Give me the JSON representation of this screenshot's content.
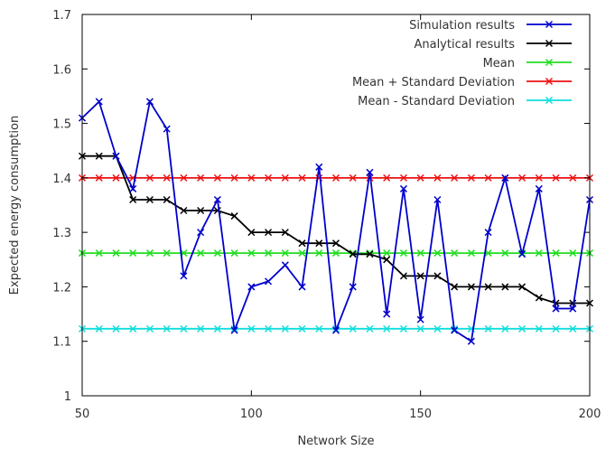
{
  "chart_data": {
    "type": "line",
    "title": "",
    "xlabel": "Network Size",
    "ylabel": "Expected energy consumption",
    "xlim": [
      50,
      200
    ],
    "ylim": [
      1,
      1.7
    ],
    "xticks": [
      50,
      100,
      150,
      200
    ],
    "yticks": [
      1,
      1.1,
      1.2,
      1.3,
      1.4,
      1.5,
      1.6,
      1.7
    ],
    "grid": false,
    "legend_position": "top-right",
    "x": [
      50,
      55,
      60,
      65,
      70,
      75,
      80,
      85,
      90,
      95,
      100,
      105,
      110,
      115,
      120,
      125,
      130,
      135,
      140,
      145,
      150,
      155,
      160,
      165,
      170,
      175,
      180,
      185,
      190,
      195,
      200
    ],
    "series": [
      {
        "name": "Simulation results",
        "color": "#0000cc",
        "values": [
          1.51,
          1.54,
          1.44,
          1.38,
          1.54,
          1.49,
          1.22,
          1.3,
          1.36,
          1.12,
          1.2,
          1.21,
          1.24,
          1.2,
          1.42,
          1.12,
          1.2,
          1.41,
          1.15,
          1.38,
          1.14,
          1.36,
          1.12,
          1.1,
          1.3,
          1.4,
          1.26,
          1.38,
          1.16,
          1.16,
          1.36
        ]
      },
      {
        "name": "Analytical results",
        "color": "#000000",
        "values": [
          1.44,
          1.44,
          1.44,
          1.36,
          1.36,
          1.36,
          1.34,
          1.34,
          1.34,
          1.33,
          1.3,
          1.3,
          1.3,
          1.28,
          1.28,
          1.28,
          1.26,
          1.26,
          1.25,
          1.22,
          1.22,
          1.22,
          1.2,
          1.2,
          1.2,
          1.2,
          1.2,
          1.18,
          1.17,
          1.17,
          1.17
        ]
      },
      {
        "name": "Mean",
        "color": "#22dd22",
        "values": [
          1.262,
          1.262,
          1.262,
          1.262,
          1.262,
          1.262,
          1.262,
          1.262,
          1.262,
          1.262,
          1.262,
          1.262,
          1.262,
          1.262,
          1.262,
          1.262,
          1.262,
          1.262,
          1.262,
          1.262,
          1.262,
          1.262,
          1.262,
          1.262,
          1.262,
          1.262,
          1.262,
          1.262,
          1.262,
          1.262,
          1.262
        ]
      },
      {
        "name": "Mean + Standard Deviation",
        "color": "#ee1111",
        "values": [
          1.4,
          1.4,
          1.4,
          1.4,
          1.4,
          1.4,
          1.4,
          1.4,
          1.4,
          1.4,
          1.4,
          1.4,
          1.4,
          1.4,
          1.4,
          1.4,
          1.4,
          1.4,
          1.4,
          1.4,
          1.4,
          1.4,
          1.4,
          1.4,
          1.4,
          1.4,
          1.4,
          1.4,
          1.4,
          1.4,
          1.4
        ]
      },
      {
        "name": "Mean - Standard Deviation",
        "color": "#11dddd",
        "values": [
          1.123,
          1.123,
          1.123,
          1.123,
          1.123,
          1.123,
          1.123,
          1.123,
          1.123,
          1.123,
          1.123,
          1.123,
          1.123,
          1.123,
          1.123,
          1.123,
          1.123,
          1.123,
          1.123,
          1.123,
          1.123,
          1.123,
          1.123,
          1.123,
          1.123,
          1.123,
          1.123,
          1.123,
          1.123,
          1.123,
          1.123
        ]
      }
    ]
  }
}
